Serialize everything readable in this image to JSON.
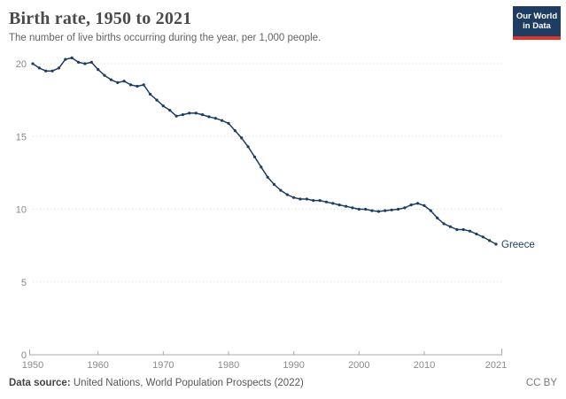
{
  "header": {
    "title": "Birth rate, 1950 to 2021",
    "subtitle": "The number of live births occurring during the year, per 1,000 people.",
    "logo": {
      "line1": "Our World",
      "line2": "in Data"
    }
  },
  "chart_data": {
    "type": "line",
    "title": "Birth rate, 1950 to 2021",
    "xlabel": "",
    "ylabel": "",
    "xlim": [
      1950,
      2021
    ],
    "ylim": [
      0,
      20
    ],
    "x_ticks": [
      1950,
      1960,
      1970,
      1980,
      1990,
      2000,
      2010,
      2021
    ],
    "y_ticks": [
      0,
      5,
      10,
      15,
      20
    ],
    "grid": "horizontal-dotted",
    "legend_position": "end-of-line-label",
    "series": [
      {
        "name": "Greece",
        "color": "#1d3d63",
        "x": [
          1950,
          1951,
          1952,
          1953,
          1954,
          1955,
          1956,
          1957,
          1958,
          1959,
          1960,
          1961,
          1962,
          1963,
          1964,
          1965,
          1966,
          1967,
          1968,
          1969,
          1970,
          1971,
          1972,
          1973,
          1974,
          1975,
          1976,
          1977,
          1978,
          1979,
          1980,
          1981,
          1982,
          1983,
          1984,
          1985,
          1986,
          1987,
          1988,
          1989,
          1990,
          1991,
          1992,
          1993,
          1994,
          1995,
          1996,
          1997,
          1998,
          1999,
          2000,
          2001,
          2002,
          2003,
          2004,
          2005,
          2006,
          2007,
          2008,
          2009,
          2010,
          2011,
          2012,
          2013,
          2014,
          2015,
          2016,
          2017,
          2018,
          2019,
          2020,
          2021
        ],
        "values": [
          20.0,
          19.7,
          19.5,
          19.5,
          19.7,
          20.3,
          20.4,
          20.1,
          20.0,
          20.1,
          19.6,
          19.2,
          18.9,
          18.7,
          18.8,
          18.55,
          18.45,
          18.55,
          17.9,
          17.5,
          17.1,
          16.8,
          16.4,
          16.5,
          16.6,
          16.6,
          16.5,
          16.35,
          16.25,
          16.1,
          15.9,
          15.4,
          14.9,
          14.3,
          13.6,
          12.9,
          12.2,
          11.7,
          11.3,
          11.0,
          10.8,
          10.7,
          10.7,
          10.6,
          10.6,
          10.5,
          10.4,
          10.3,
          10.2,
          10.1,
          10.0,
          10.0,
          9.9,
          9.85,
          9.9,
          9.95,
          10.0,
          10.1,
          10.3,
          10.4,
          10.25,
          9.9,
          9.4,
          9.0,
          8.8,
          8.6,
          8.6,
          8.5,
          8.3,
          8.1,
          7.85,
          7.6
        ]
      }
    ]
  },
  "footer": {
    "source_prefix": "Data source:",
    "source_text": " United Nations, World Population Prospects (2022)",
    "license": "CC BY"
  },
  "colors": {
    "line": "#1d3d63",
    "grid": "#dadada",
    "baseline": "#a8a8a8",
    "axis_text": "#8a8a8a",
    "logo_bg": "#1d3d63",
    "logo_accent": "#dc352b"
  }
}
